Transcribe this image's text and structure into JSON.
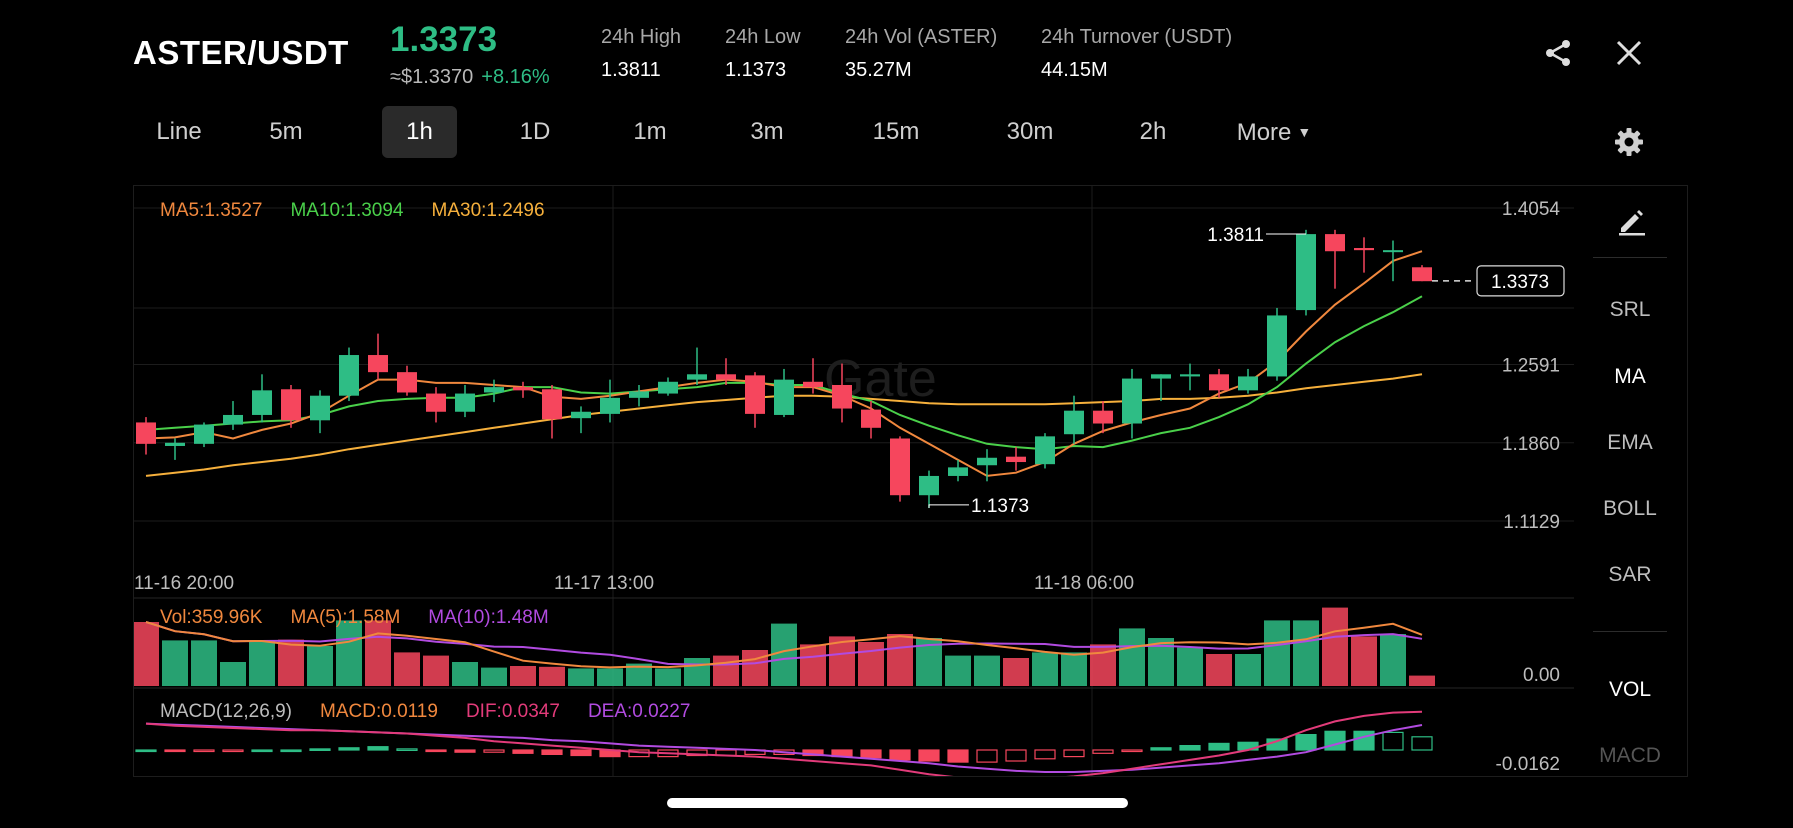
{
  "header": {
    "pair": "ASTER/USDT",
    "last_price": "1.3373",
    "usd_price": "≈$1.3370",
    "change": "+8.16%",
    "stats": [
      {
        "label": "24h High",
        "value": "1.3811"
      },
      {
        "label": "24h Low",
        "value": "1.1373"
      },
      {
        "label": "24h Vol (ASTER)",
        "value": "35.27M"
      },
      {
        "label": "24h Turnover (USDT)",
        "value": "44.15M"
      }
    ],
    "icons": {
      "share": "share-icon",
      "close": "close-icon",
      "settings": "gear-icon",
      "draw": "pencil-icon"
    }
  },
  "timeframes": [
    "Line",
    "5m",
    "1h",
    "1D",
    "1m",
    "3m",
    "15m",
    "30m",
    "2h",
    "More"
  ],
  "active_timeframe": "1h",
  "indicator_panel": [
    "SRL",
    "MA",
    "EMA",
    "BOLL",
    "SAR",
    "VOL",
    "MACD"
  ],
  "colors": {
    "up": "#2ebd85",
    "down": "#f6465d",
    "ma5": "#f0883e",
    "ma10": "#4ad04a",
    "ma30": "#f6b03c",
    "macd_line": "#e23b7a",
    "dea": "#b14be0"
  },
  "chart_data": {
    "type": "candlestick",
    "legend": {
      "ma5": "MA5:1.3527",
      "ma10": "MA10:1.3094",
      "ma30": "MA30:1.2496"
    },
    "price_axis": [
      "1.4054",
      "1.2591",
      "1.1860",
      "1.1129"
    ],
    "ylim": [
      1.1129,
      1.4054
    ],
    "time_labels": [
      "11-16 20:00",
      "11-17 13:00",
      "11-18 06:00"
    ],
    "high_marker": "1.3811",
    "low_marker": "1.1373",
    "current_price_tag": "1.3373",
    "candles": [
      {
        "o": 1.205,
        "h": 1.21,
        "l": 1.175,
        "c": 1.185
      },
      {
        "o": 1.183,
        "h": 1.19,
        "l": 1.17,
        "c": 1.186
      },
      {
        "o": 1.185,
        "h": 1.205,
        "l": 1.182,
        "c": 1.203
      },
      {
        "o": 1.203,
        "h": 1.225,
        "l": 1.198,
        "c": 1.212
      },
      {
        "o": 1.212,
        "h": 1.25,
        "l": 1.205,
        "c": 1.235
      },
      {
        "o": 1.236,
        "h": 1.24,
        "l": 1.2,
        "c": 1.207
      },
      {
        "o": 1.207,
        "h": 1.235,
        "l": 1.195,
        "c": 1.23
      },
      {
        "o": 1.23,
        "h": 1.275,
        "l": 1.225,
        "c": 1.268
      },
      {
        "o": 1.268,
        "h": 1.288,
        "l": 1.245,
        "c": 1.252
      },
      {
        "o": 1.252,
        "h": 1.258,
        "l": 1.23,
        "c": 1.233
      },
      {
        "o": 1.232,
        "h": 1.238,
        "l": 1.205,
        "c": 1.215
      },
      {
        "o": 1.215,
        "h": 1.24,
        "l": 1.21,
        "c": 1.232
      },
      {
        "o": 1.233,
        "h": 1.245,
        "l": 1.224,
        "c": 1.238
      },
      {
        "o": 1.238,
        "h": 1.243,
        "l": 1.228,
        "c": 1.235
      },
      {
        "o": 1.236,
        "h": 1.24,
        "l": 1.19,
        "c": 1.208
      },
      {
        "o": 1.209,
        "h": 1.22,
        "l": 1.195,
        "c": 1.215
      },
      {
        "o": 1.213,
        "h": 1.245,
        "l": 1.205,
        "c": 1.228
      },
      {
        "o": 1.228,
        "h": 1.24,
        "l": 1.22,
        "c": 1.234
      },
      {
        "o": 1.232,
        "h": 1.247,
        "l": 1.23,
        "c": 1.243
      },
      {
        "o": 1.245,
        "h": 1.275,
        "l": 1.24,
        "c": 1.25
      },
      {
        "o": 1.25,
        "h": 1.265,
        "l": 1.24,
        "c": 1.245
      },
      {
        "o": 1.249,
        "h": 1.252,
        "l": 1.2,
        "c": 1.213
      },
      {
        "o": 1.212,
        "h": 1.255,
        "l": 1.21,
        "c": 1.245
      },
      {
        "o": 1.243,
        "h": 1.265,
        "l": 1.232,
        "c": 1.238
      },
      {
        "o": 1.24,
        "h": 1.26,
        "l": 1.205,
        "c": 1.218
      },
      {
        "o": 1.217,
        "h": 1.225,
        "l": 1.19,
        "c": 1.2
      },
      {
        "o": 1.19,
        "h": 1.192,
        "l": 1.131,
        "c": 1.137
      },
      {
        "o": 1.137,
        "h": 1.16,
        "l": 1.125,
        "c": 1.155
      },
      {
        "o": 1.155,
        "h": 1.17,
        "l": 1.15,
        "c": 1.163
      },
      {
        "o": 1.165,
        "h": 1.18,
        "l": 1.15,
        "c": 1.172
      },
      {
        "o": 1.173,
        "h": 1.182,
        "l": 1.16,
        "c": 1.168
      },
      {
        "o": 1.166,
        "h": 1.195,
        "l": 1.162,
        "c": 1.192
      },
      {
        "o": 1.194,
        "h": 1.23,
        "l": 1.185,
        "c": 1.216
      },
      {
        "o": 1.216,
        "h": 1.225,
        "l": 1.195,
        "c": 1.204
      },
      {
        "o": 1.204,
        "h": 1.255,
        "l": 1.19,
        "c": 1.246
      },
      {
        "o": 1.246,
        "h": 1.25,
        "l": 1.225,
        "c": 1.25
      },
      {
        "o": 1.248,
        "h": 1.26,
        "l": 1.235,
        "c": 1.25
      },
      {
        "o": 1.25,
        "h": 1.255,
        "l": 1.228,
        "c": 1.235
      },
      {
        "o": 1.235,
        "h": 1.255,
        "l": 1.232,
        "c": 1.248
      },
      {
        "o": 1.248,
        "h": 1.312,
        "l": 1.244,
        "c": 1.305
      },
      {
        "o": 1.31,
        "h": 1.385,
        "l": 1.305,
        "c": 1.381
      },
      {
        "o": 1.381,
        "h": 1.385,
        "l": 1.33,
        "c": 1.365
      },
      {
        "o": 1.368,
        "h": 1.378,
        "l": 1.345,
        "c": 1.366
      },
      {
        "o": 1.366,
        "h": 1.375,
        "l": 1.337,
        "c": 1.366
      },
      {
        "o": 1.35,
        "h": 1.352,
        "l": 1.337,
        "c": 1.337
      }
    ],
    "ma5_line": [
      1.19,
      1.191,
      1.196,
      1.19,
      1.198,
      1.204,
      1.214,
      1.23,
      1.245,
      1.245,
      1.242,
      1.242,
      1.24,
      1.238,
      1.229,
      1.227,
      1.23,
      1.234,
      1.238,
      1.242,
      1.245,
      1.243,
      1.238,
      1.238,
      1.23,
      1.218,
      1.2,
      1.185,
      1.17,
      1.155,
      1.158,
      1.168,
      1.185,
      1.197,
      1.205,
      1.212,
      1.218,
      1.232,
      1.242,
      1.262,
      1.29,
      1.315,
      1.335,
      1.356,
      1.365
    ],
    "ma10_line": [
      1.198,
      1.2,
      1.202,
      1.204,
      1.206,
      1.207,
      1.212,
      1.22,
      1.225,
      1.227,
      1.228,
      1.228,
      1.232,
      1.238,
      1.238,
      1.233,
      1.232,
      1.234,
      1.236,
      1.238,
      1.242,
      1.242,
      1.24,
      1.24,
      1.232,
      1.225,
      1.212,
      1.202,
      1.193,
      1.185,
      1.182,
      1.18,
      1.183,
      1.182,
      1.188,
      1.195,
      1.2,
      1.21,
      1.222,
      1.238,
      1.26,
      1.28,
      1.295,
      1.308,
      1.323
    ],
    "ma30_line": [
      1.155,
      1.158,
      1.161,
      1.165,
      1.168,
      1.171,
      1.175,
      1.18,
      1.184,
      1.188,
      1.192,
      1.196,
      1.2,
      1.204,
      1.208,
      1.212,
      1.215,
      1.218,
      1.221,
      1.224,
      1.226,
      1.228,
      1.23,
      1.23,
      1.229,
      1.227,
      1.225,
      1.223,
      1.222,
      1.222,
      1.222,
      1.222,
      1.223,
      1.224,
      1.225,
      1.227,
      1.227,
      1.228,
      1.23,
      1.233,
      1.237,
      1.24,
      1.243,
      1.246,
      1.25
    ],
    "volume": {
      "legend": {
        "vol": "Vol:359.96K",
        "ma5": "MA(5):1.58M",
        "ma10": "MA(10):1.48M"
      },
      "axis_label": "0.00",
      "bars": [
        0.8,
        0.57,
        0.57,
        0.3,
        0.57,
        0.58,
        0.5,
        0.82,
        0.82,
        0.42,
        0.38,
        0.3,
        0.23,
        0.25,
        0.24,
        0.22,
        0.22,
        0.28,
        0.22,
        0.35,
        0.38,
        0.45,
        0.78,
        0.52,
        0.62,
        0.55,
        0.65,
        0.6,
        0.38,
        0.38,
        0.35,
        0.42,
        0.42,
        0.52,
        0.72,
        0.6,
        0.48,
        0.4,
        0.4,
        0.82,
        0.82,
        0.98,
        0.62,
        0.65,
        0.13
      ]
    },
    "macd": {
      "legend": {
        "params": "MACD(12,26,9)",
        "macd": "MACD:0.0119",
        "dif": "DIF:0.0347",
        "dea": "DEA:0.0227"
      },
      "axis_label": "-0.0162",
      "hist": [
        0.0,
        -0.001,
        -0.001,
        -0.001,
        0.0,
        0.0,
        0.001,
        0.002,
        0.003,
        0.001,
        -0.001,
        -0.002,
        -0.002,
        -0.003,
        -0.004,
        -0.005,
        -0.006,
        -0.006,
        -0.006,
        -0.005,
        -0.005,
        -0.004,
        -0.004,
        -0.005,
        -0.006,
        -0.007,
        -0.009,
        -0.01,
        -0.011,
        -0.011,
        -0.01,
        -0.008,
        -0.006,
        -0.003,
        -0.001,
        0.002,
        0.004,
        0.006,
        0.007,
        0.01,
        0.014,
        0.017,
        0.017,
        0.016,
        0.012
      ],
      "dif_line": [
        0.024,
        0.022,
        0.021,
        0.02,
        0.019,
        0.018,
        0.018,
        0.017,
        0.016,
        0.015,
        0.013,
        0.011,
        0.008,
        0.006,
        0.004,
        0.002,
        0.0,
        -0.002,
        -0.003,
        -0.004,
        -0.005,
        -0.006,
        -0.008,
        -0.01,
        -0.012,
        -0.014,
        -0.018,
        -0.022,
        -0.025,
        -0.027,
        -0.027,
        -0.026,
        -0.024,
        -0.021,
        -0.017,
        -0.013,
        -0.009,
        -0.005,
        0.0,
        0.008,
        0.018,
        0.026,
        0.031,
        0.034,
        0.0347
      ],
      "dea_line": [
        0.024,
        0.023,
        0.022,
        0.021,
        0.02,
        0.019,
        0.018,
        0.017,
        0.016,
        0.015,
        0.014,
        0.013,
        0.012,
        0.011,
        0.009,
        0.008,
        0.006,
        0.004,
        0.003,
        0.002,
        0.001,
        0.0,
        -0.002,
        -0.004,
        -0.006,
        -0.008,
        -0.01,
        -0.012,
        -0.015,
        -0.017,
        -0.019,
        -0.02,
        -0.02,
        -0.019,
        -0.018,
        -0.016,
        -0.014,
        -0.012,
        -0.009,
        -0.006,
        -0.002,
        0.005,
        0.012,
        0.018,
        0.0227
      ]
    }
  }
}
